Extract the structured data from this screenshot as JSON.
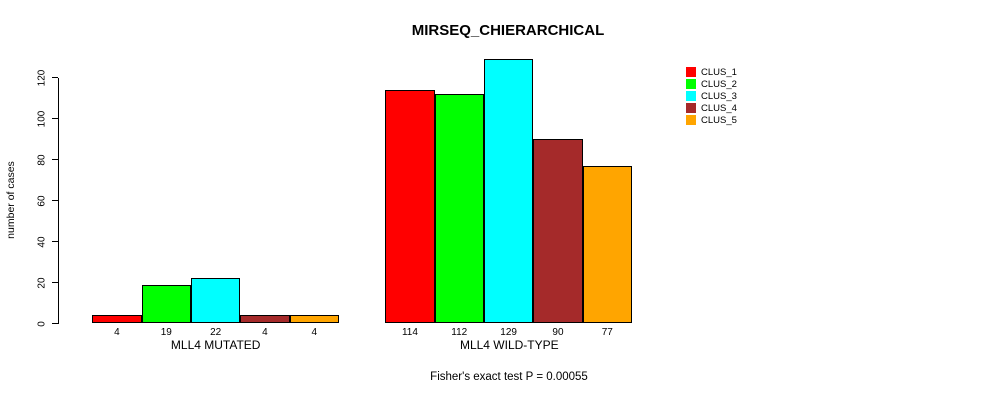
{
  "chart_data": {
    "type": "bar",
    "title": "MIRSEQ_CHIERARCHICAL",
    "ylabel": "number of cases",
    "xlabel": "",
    "ylim": [
      0,
      120
    ],
    "yticks": [
      0,
      20,
      40,
      60,
      80,
      100,
      120
    ],
    "grid": false,
    "legend_position": "right-outside",
    "categories": [
      "MLL4 MUTATED",
      "MLL4 WILD-TYPE"
    ],
    "series": [
      {
        "name": "CLUS_1",
        "color": "#FF0000",
        "values": [
          4,
          114
        ]
      },
      {
        "name": "CLUS_2",
        "color": "#00FF00",
        "values": [
          19,
          112
        ]
      },
      {
        "name": "CLUS_3",
        "color": "#00FFFF",
        "values": [
          22,
          129
        ]
      },
      {
        "name": "CLUS_4",
        "color": "#A52A2A",
        "values": [
          4,
          90
        ]
      },
      {
        "name": "CLUS_5",
        "color": "#FFA500",
        "values": [
          4,
          77
        ]
      }
    ],
    "bar_value_labels": [
      [
        4,
        19,
        22,
        4,
        4
      ],
      [
        114,
        112,
        129,
        90,
        77
      ]
    ],
    "footer": "Fisher's exact test P = 0.00055"
  }
}
